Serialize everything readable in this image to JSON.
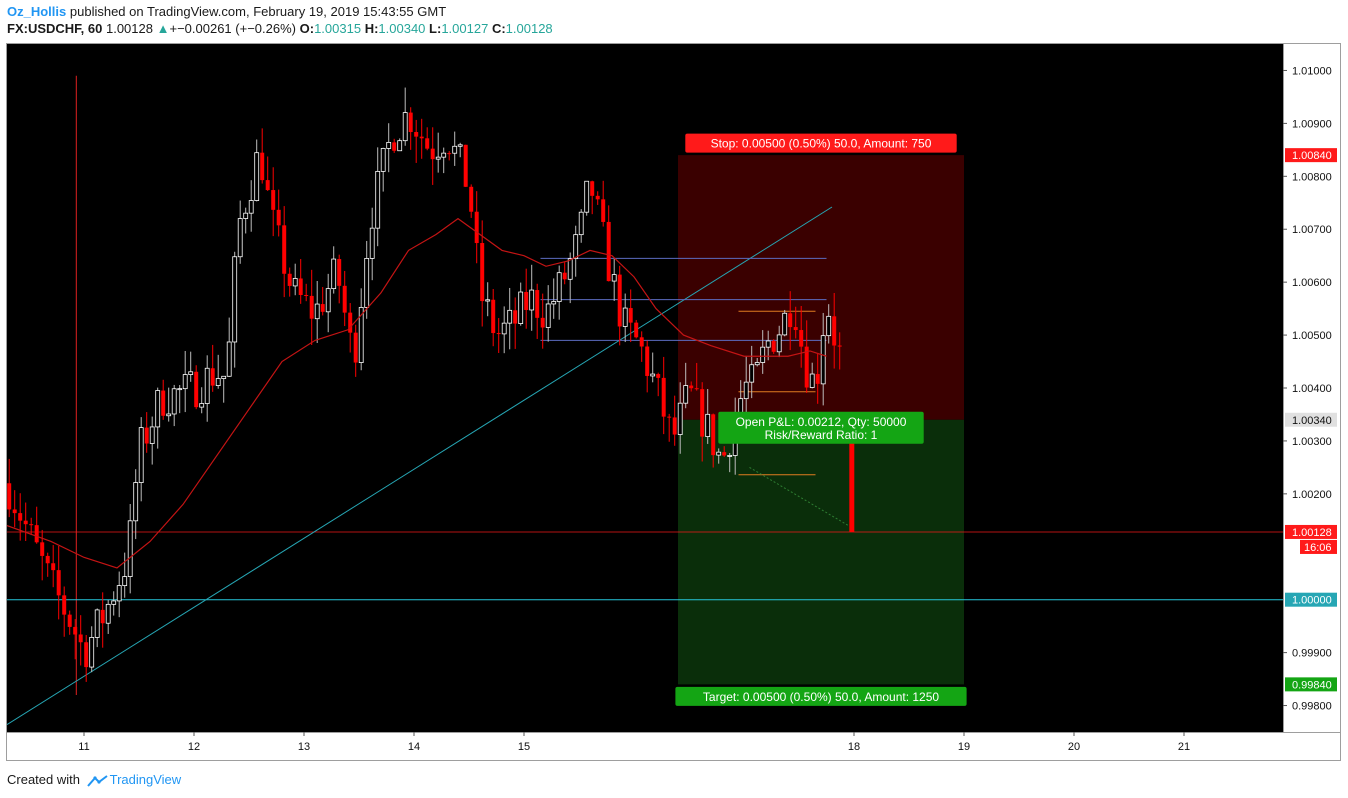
{
  "header": {
    "author": "Oz_Hollis",
    "published": "published on TradingView.com, February 19, 2019 15:43:55 GMT",
    "symbol": "FX:USDCHF, 60",
    "last": "1.00128",
    "change_arrow": "▲",
    "change": "+−0.00261 (+−0.26%)",
    "o_label": "O:",
    "o_val": "1.00315",
    "h_label": "H:",
    "h_val": "1.00340",
    "l_label": "L:",
    "l_val": "1.00127",
    "c_label": "C:",
    "c_val": "1.00128"
  },
  "footer": {
    "created": "Created with",
    "brand": "TradingView",
    "logo_icon": "tradingview-logo-icon"
  },
  "colors": {
    "background": "#000000",
    "up_candle": "#ffffff",
    "down_candle": "#ff0000",
    "moving_average": "#c41414",
    "trendline": "#26a6b4",
    "level_line": "#26c6da",
    "stop_zone": "#3a0000",
    "target_zone": "#0a2e0a",
    "label_red": "#ff1a1a",
    "label_green": "#14a514"
  },
  "chart_data": {
    "type": "candlestick",
    "symbol": "FX:USDCHF",
    "interval": "60",
    "ylim": [
      0.9975,
      1.0105
    ],
    "yticks": [
      1.01,
      1.009,
      1.008,
      1.007,
      1.006,
      1.005,
      1.004,
      1.003,
      1.002,
      0.999,
      0.998
    ],
    "ytick_labels": [
      "1.01000",
      "1.00900",
      "1.00800",
      "1.00700",
      "1.00600",
      "1.00500",
      "1.00400",
      "1.00300",
      "1.00200",
      "0.99900",
      "0.99800"
    ],
    "xlim": [
      10.3,
      21.9
    ],
    "xticks": [
      {
        "x": 11,
        "label": "11"
      },
      {
        "x": 12,
        "label": "12"
      },
      {
        "x": 13,
        "label": "13"
      },
      {
        "x": 14,
        "label": "14"
      },
      {
        "x": 15,
        "label": "15"
      },
      {
        "x": 18,
        "label": "18"
      },
      {
        "x": 19,
        "label": "19"
      },
      {
        "x": 20,
        "label": "20"
      },
      {
        "x": 21,
        "label": "21"
      }
    ],
    "price_path": [
      [
        10.3,
        1.0022
      ],
      [
        10.7,
        1.0003
      ],
      [
        10.9,
        0.9995
      ],
      [
        11.0,
        0.999
      ],
      [
        11.2,
        0.9998
      ],
      [
        11.4,
        1.0008
      ],
      [
        11.5,
        1.0028
      ],
      [
        11.7,
        1.0038
      ],
      [
        12.0,
        1.004
      ],
      [
        12.2,
        1.0043
      ],
      [
        12.3,
        1.0042
      ],
      [
        12.4,
        1.007
      ],
      [
        12.6,
        1.0085
      ],
      [
        12.7,
        1.0072
      ],
      [
        12.9,
        1.0058
      ],
      [
        13.1,
        1.0054
      ],
      [
        13.3,
        1.0062
      ],
      [
        13.45,
        1.0045
      ],
      [
        13.6,
        1.0072
      ],
      [
        13.8,
        1.0088
      ],
      [
        13.95,
        1.0092
      ],
      [
        14.15,
        1.0085
      ],
      [
        14.3,
        1.0088
      ],
      [
        14.5,
        1.0078
      ],
      [
        14.6,
        1.0058
      ],
      [
        14.75,
        1.005
      ],
      [
        14.9,
        1.0052
      ],
      [
        15.05,
        1.0057
      ],
      [
        15.2,
        1.0054
      ],
      [
        15.35,
        1.006
      ],
      [
        15.5,
        1.0068
      ],
      [
        15.6,
        1.0079
      ],
      [
        15.75,
        1.0065
      ],
      [
        15.9,
        1.0052
      ],
      [
        16.05,
        1.0048
      ],
      [
        16.2,
        1.004
      ],
      [
        16.35,
        1.003
      ],
      [
        16.5,
        1.0039
      ],
      [
        16.65,
        1.0033
      ],
      [
        16.8,
        1.0026
      ],
      [
        17.0,
        1.004
      ],
      [
        17.1,
        1.0041
      ],
      [
        17.2,
        1.0048
      ],
      [
        17.35,
        1.0052
      ],
      [
        17.45,
        1.0057
      ],
      [
        17.55,
        1.0045
      ],
      [
        17.65,
        1.004
      ],
      [
        17.75,
        1.0057
      ],
      [
        17.85,
        1.0047
      ],
      [
        17.95,
        1.0044
      ]
    ],
    "moving_average": [
      [
        10.3,
        1.0014
      ],
      [
        10.7,
        1.0011
      ],
      [
        11.0,
        1.0008
      ],
      [
        11.3,
        1.0006
      ],
      [
        11.6,
        1.0011
      ],
      [
        11.9,
        1.0018
      ],
      [
        12.2,
        1.0027
      ],
      [
        12.5,
        1.0036
      ],
      [
        12.8,
        1.0045
      ],
      [
        13.1,
        1.0049
      ],
      [
        13.4,
        1.0051
      ],
      [
        13.7,
        1.0058
      ],
      [
        13.95,
        1.0066
      ],
      [
        14.2,
        1.0069
      ],
      [
        14.4,
        1.0072
      ],
      [
        14.6,
        1.0069
      ],
      [
        14.8,
        1.0066
      ],
      [
        15.0,
        1.0065
      ],
      [
        15.2,
        1.0063
      ],
      [
        15.4,
        1.0064
      ],
      [
        15.6,
        1.0066
      ],
      [
        15.8,
        1.0065
      ],
      [
        16.0,
        1.0061
      ],
      [
        16.2,
        1.0055
      ],
      [
        16.45,
        1.005
      ],
      [
        16.7,
        1.0048
      ],
      [
        17.0,
        1.0046
      ],
      [
        17.2,
        1.0046
      ],
      [
        17.4,
        1.0046
      ],
      [
        17.6,
        1.0047
      ],
      [
        17.75,
        1.0046
      ]
    ],
    "trendline": [
      [
        10.3,
        0.99764
      ],
      [
        17.8,
        1.00742
      ]
    ],
    "horizontal_lines": [
      {
        "y": 1.0,
        "label": "1.00000",
        "color": "#26c6da"
      },
      {
        "y": 1.00128,
        "label": "1.00128",
        "color": "#ff1a1a",
        "countdown": "16:06"
      }
    ],
    "short_position": {
      "start_x": 16.4,
      "end_x": 19.0,
      "entry": 1.0034,
      "stop": 1.0084,
      "target": 0.9984,
      "entry_label": "1.00340",
      "stop_label": "1.00840",
      "target_label": "0.99840",
      "stop_text": "Stop: 0.00500 (0.50%) 50.0, Amount: 750",
      "target_text": "Target: 0.00500 (0.50%) 50.0, Amount: 1250",
      "pnl_text": "Open P&L: 0.00212, Qty: 50000",
      "rr_text": "Risk/Reward Ratio: 1"
    },
    "marker_line": {
      "x": 10.93,
      "y_top": 1.0099,
      "y_bottom": 0.9982
    },
    "levels_blue": [
      {
        "x1": 15.15,
        "x2": 17.75,
        "y": 1.00645
      },
      {
        "x1": 15.15,
        "x2": 17.75,
        "y": 1.00567
      },
      {
        "x1": 15.15,
        "x2": 17.75,
        "y": 1.0049
      }
    ],
    "levels_orange": [
      {
        "x1": 16.95,
        "x2": 17.65,
        "y": 1.00545
      },
      {
        "x1": 16.95,
        "x2": 17.65,
        "y": 1.00393
      },
      {
        "x1": 16.95,
        "x2": 17.65,
        "y": 1.00236
      }
    ]
  }
}
